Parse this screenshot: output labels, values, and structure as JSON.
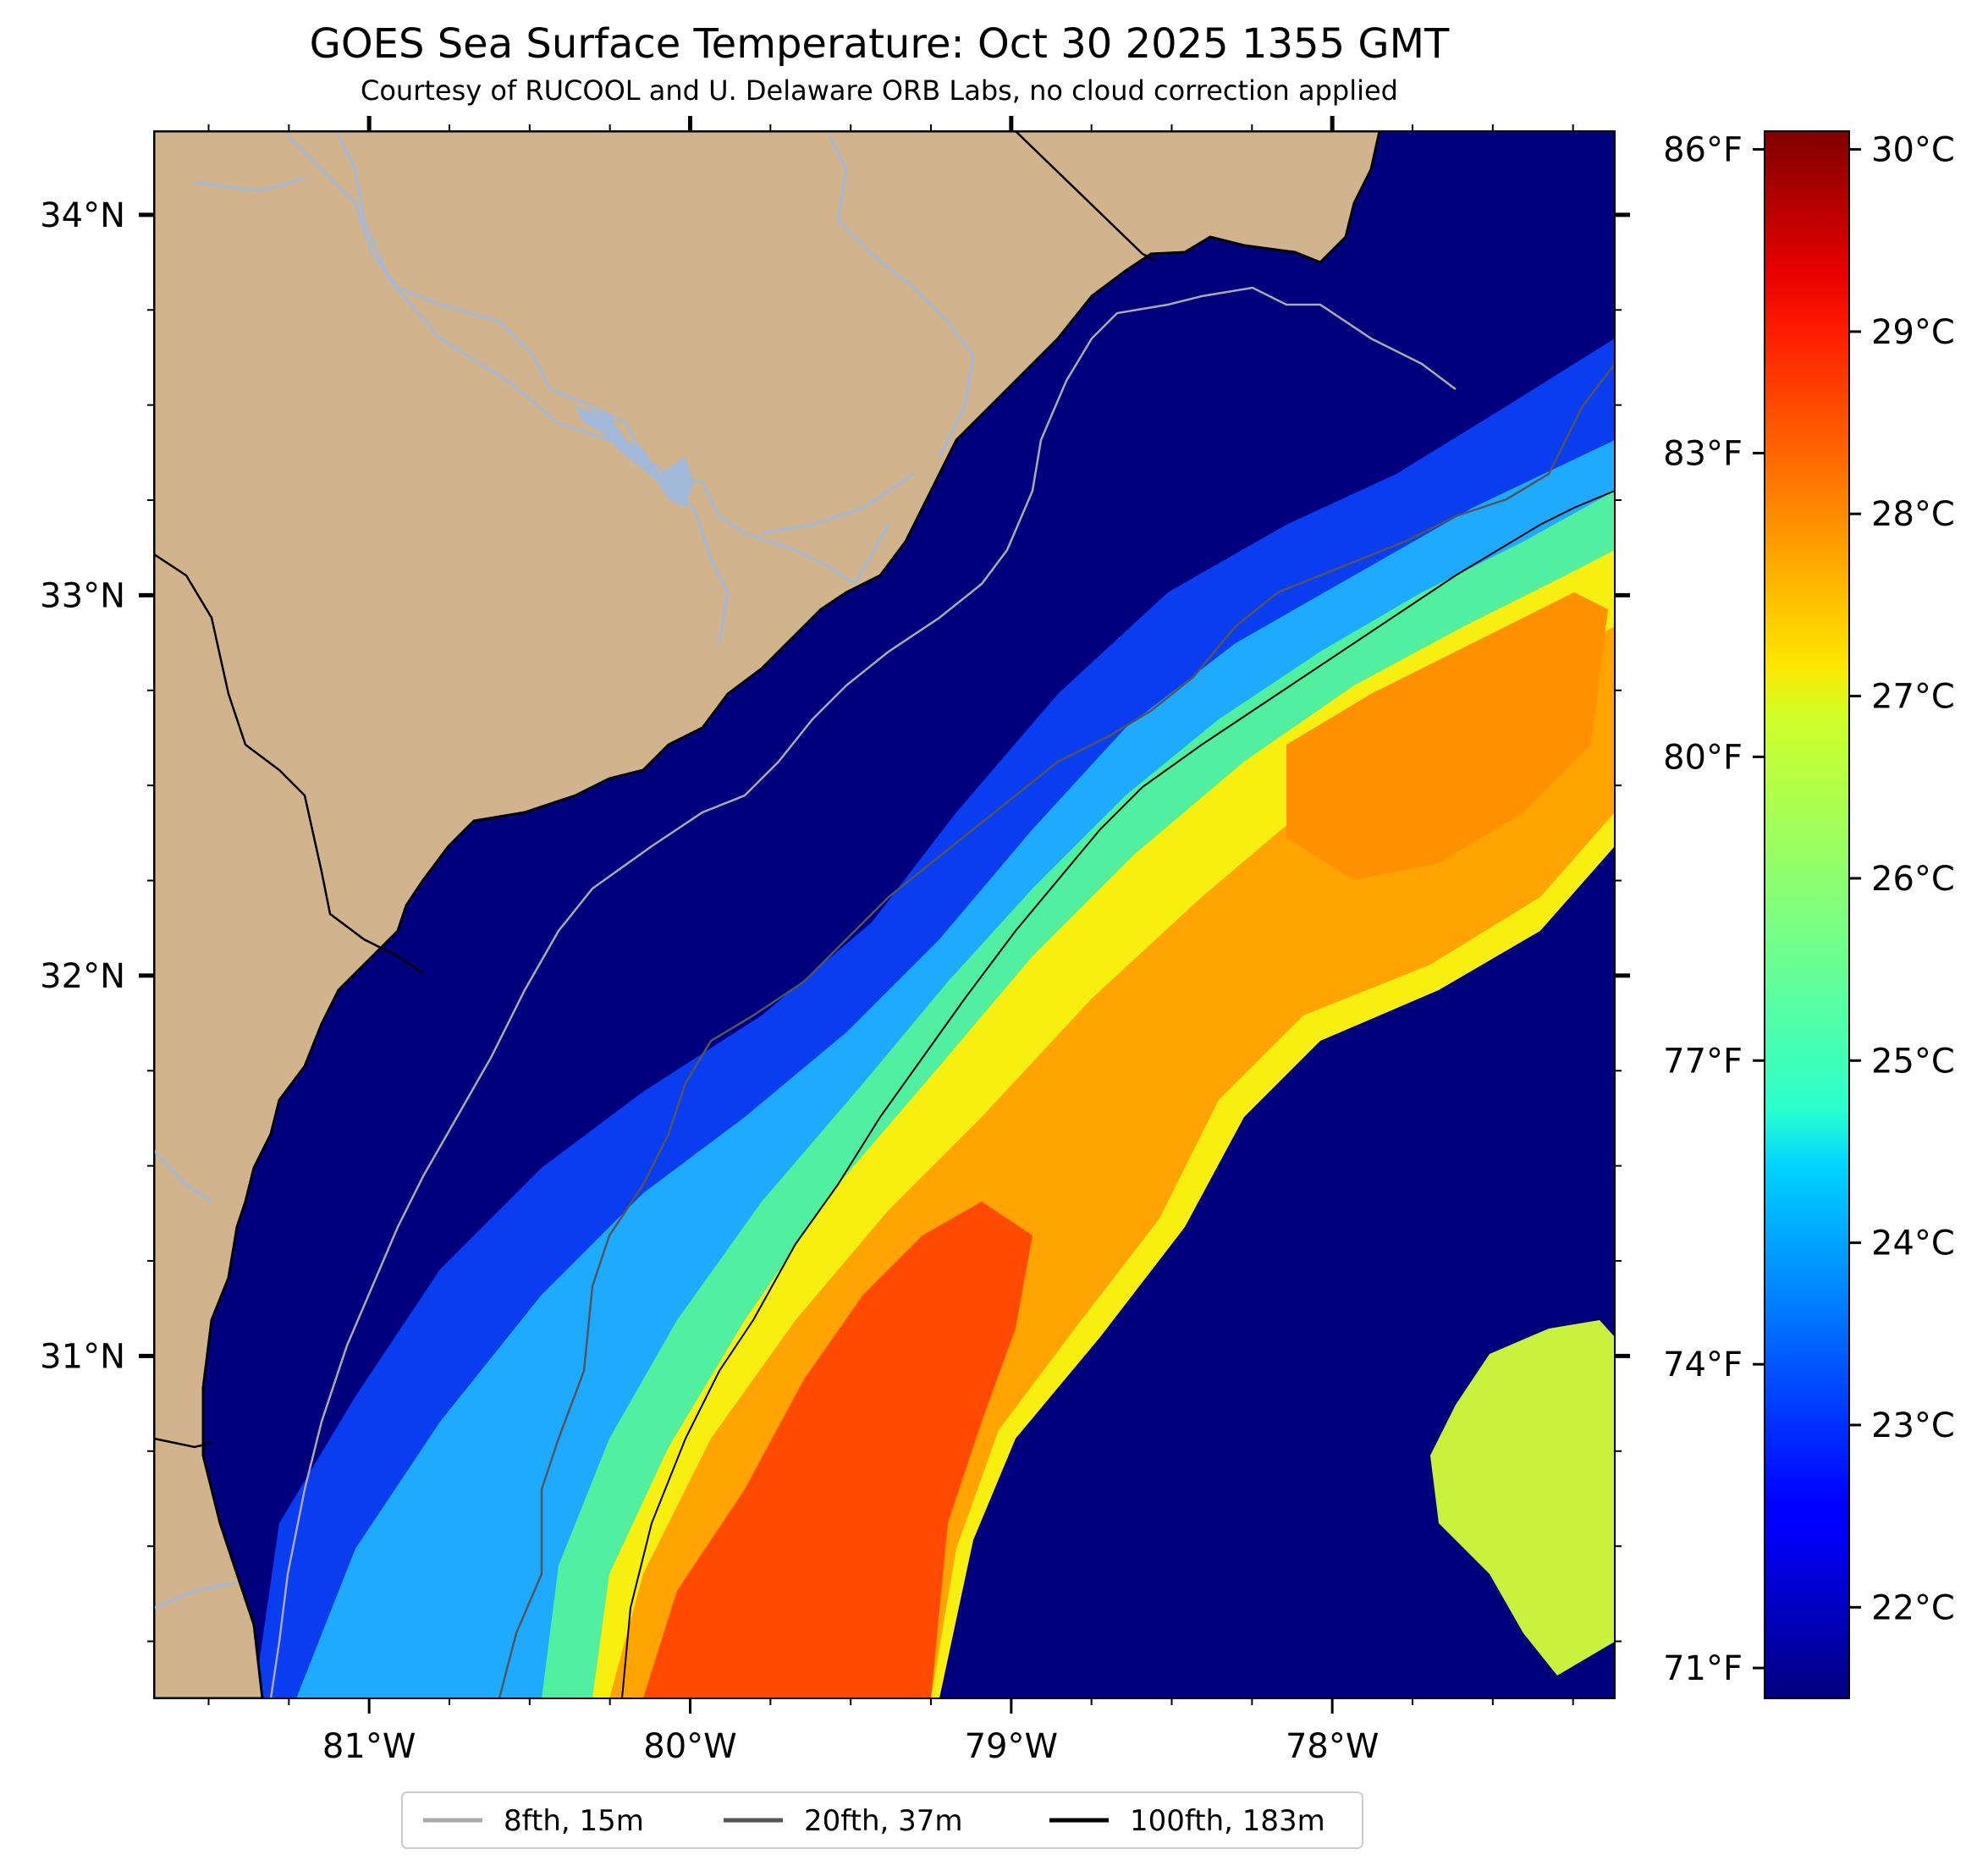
{
  "title": "GOES Sea Surface Temperature: Oct 30 2025 1355 GMT",
  "subtitle": "Courtesy of RUCOOL and U. Delaware ORB Labs, no cloud correction applied",
  "map": {
    "lon_range": [
      -81.67,
      -77.12
    ],
    "lat_range": [
      30.1,
      34.22
    ],
    "lon_ticks": [
      {
        "value": -81,
        "label": "81°W"
      },
      {
        "value": -80,
        "label": "80°W"
      },
      {
        "value": -79,
        "label": "79°W"
      },
      {
        "value": -78,
        "label": "78°W"
      }
    ],
    "lat_ticks": [
      {
        "value": 34,
        "label": "34°N"
      },
      {
        "value": 33,
        "label": "33°N"
      },
      {
        "value": 32,
        "label": "32°N"
      },
      {
        "value": 31,
        "label": "31°N"
      }
    ]
  },
  "colorbar": {
    "celsius_range": [
      21.5,
      30.1
    ],
    "colormap": "jet",
    "celsius_ticks": [
      {
        "value": 22,
        "label": "22°C"
      },
      {
        "value": 23,
        "label": "23°C"
      },
      {
        "value": 24,
        "label": "24°C"
      },
      {
        "value": 25,
        "label": "25°C"
      },
      {
        "value": 26,
        "label": "26°C"
      },
      {
        "value": 27,
        "label": "27°C"
      },
      {
        "value": 28,
        "label": "28°C"
      },
      {
        "value": 29,
        "label": "29°C"
      },
      {
        "value": 30,
        "label": "30°C"
      }
    ],
    "fahrenheit_ticks": [
      {
        "value": 71,
        "label": "71°F"
      },
      {
        "value": 74,
        "label": "74°F"
      },
      {
        "value": 77,
        "label": "77°F"
      },
      {
        "value": 80,
        "label": "80°F"
      },
      {
        "value": 83,
        "label": "83°F"
      },
      {
        "value": 86,
        "label": "86°F"
      }
    ]
  },
  "legend": [
    {
      "label": "8fth, 15m",
      "color": "#aaaaaa"
    },
    {
      "label": "20fth, 37m",
      "color": "#555555"
    },
    {
      "label": "100fth, 183m",
      "color": "#000000"
    }
  ],
  "colors": {
    "land": "#d2b48c",
    "river": "#a3b9d9",
    "coast": "#000000",
    "nodata": "#ffffff"
  }
}
